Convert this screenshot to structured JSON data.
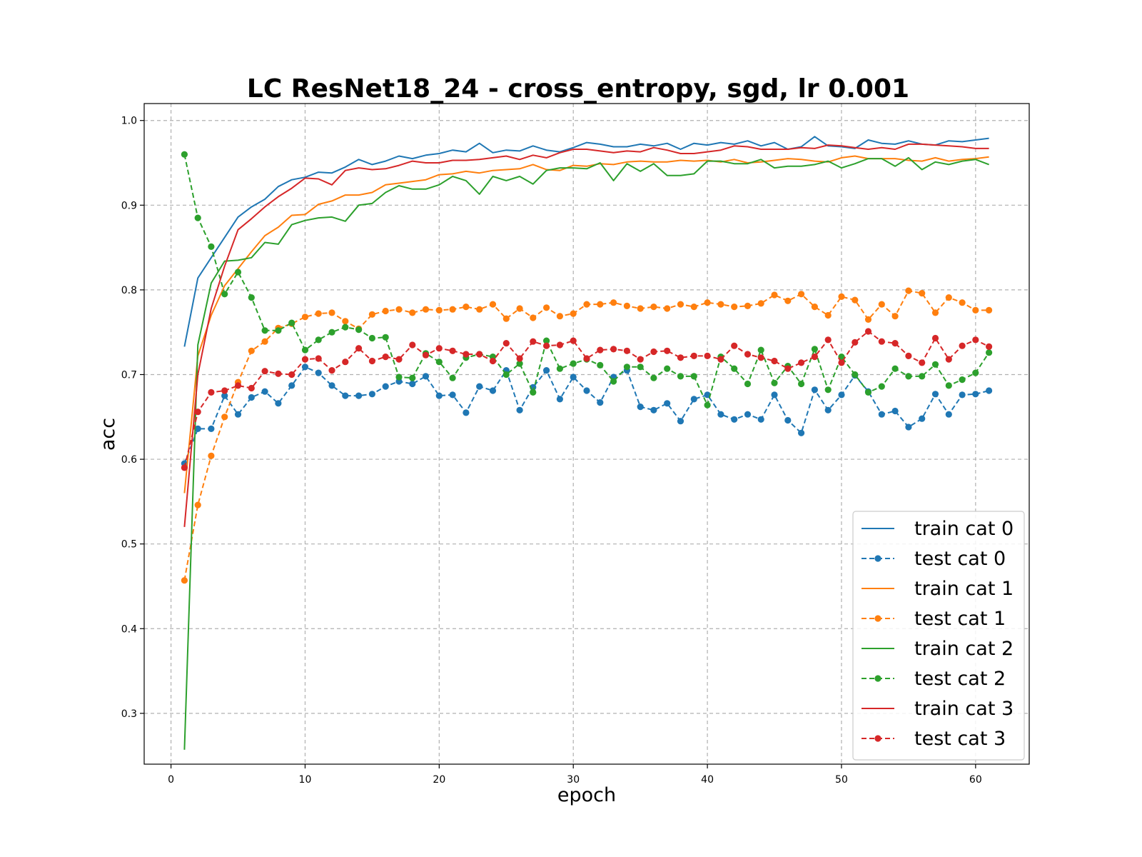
{
  "chart_data": {
    "type": "line",
    "title": "LC ResNet18_24 - cross_entropy, sgd, lr 0.001",
    "xlabel": "epoch",
    "ylabel": "acc",
    "xlim": [
      -2,
      64
    ],
    "ylim": [
      0.24,
      1.02
    ],
    "xticks": [
      0,
      10,
      20,
      30,
      40,
      50,
      60
    ],
    "yticks": [
      0.3,
      0.4,
      0.5,
      0.6,
      0.7,
      0.8,
      0.9,
      1.0
    ],
    "xtick_labels": [
      "0",
      "10",
      "20",
      "30",
      "40",
      "50",
      "60"
    ],
    "ytick_labels": [
      "0.3",
      "0.4",
      "0.5",
      "0.6",
      "0.7",
      "0.8",
      "0.9",
      "1.0"
    ],
    "grid": true,
    "legend_position": "lower-right",
    "x": [
      1,
      2,
      3,
      4,
      5,
      6,
      7,
      8,
      9,
      10,
      11,
      12,
      13,
      14,
      15,
      16,
      17,
      18,
      19,
      20,
      21,
      22,
      23,
      24,
      25,
      26,
      27,
      28,
      29,
      30,
      31,
      32,
      33,
      34,
      35,
      36,
      37,
      38,
      39,
      40,
      41,
      42,
      43,
      44,
      45,
      46,
      47,
      48,
      49,
      50,
      51,
      52,
      53,
      54,
      55,
      56,
      57,
      58,
      59,
      60,
      61
    ],
    "series": [
      {
        "name": "train cat 0",
        "color": "#1f77b4",
        "style": "solid",
        "markers": false,
        "values": [
          0.733,
          0.814,
          0.838,
          0.862,
          0.886,
          0.898,
          0.907,
          0.922,
          0.93,
          0.933,
          0.939,
          0.938,
          0.945,
          0.954,
          0.948,
          0.952,
          0.958,
          0.955,
          0.959,
          0.961,
          0.965,
          0.963,
          0.973,
          0.962,
          0.965,
          0.964,
          0.97,
          0.965,
          0.963,
          0.968,
          0.974,
          0.972,
          0.969,
          0.969,
          0.972,
          0.97,
          0.973,
          0.966,
          0.973,
          0.971,
          0.974,
          0.972,
          0.976,
          0.97,
          0.974,
          0.966,
          0.969,
          0.981,
          0.97,
          0.969,
          0.967,
          0.977,
          0.973,
          0.972,
          0.976,
          0.972,
          0.971,
          0.976,
          0.975,
          0.977,
          0.979
        ]
      },
      {
        "name": "test cat 0",
        "color": "#1f77b4",
        "style": "dashed",
        "markers": true,
        "values": [
          0.595,
          0.636,
          0.636,
          0.675,
          0.653,
          0.673,
          0.68,
          0.666,
          0.687,
          0.709,
          0.702,
          0.687,
          0.675,
          0.675,
          0.677,
          0.686,
          0.692,
          0.689,
          0.698,
          0.675,
          0.676,
          0.655,
          0.686,
          0.681,
          0.705,
          0.658,
          0.685,
          0.705,
          0.671,
          0.697,
          0.681,
          0.667,
          0.697,
          0.705,
          0.662,
          0.658,
          0.666,
          0.645,
          0.671,
          0.676,
          0.653,
          0.647,
          0.653,
          0.647,
          0.676,
          0.646,
          0.631,
          0.682,
          0.658,
          0.676,
          0.699,
          0.68,
          0.653,
          0.657,
          0.638,
          0.648,
          0.677,
          0.653,
          0.676,
          0.677,
          0.681
        ]
      },
      {
        "name": "train cat 1",
        "color": "#ff7f0e",
        "style": "solid",
        "markers": false,
        "values": [
          0.56,
          0.722,
          0.77,
          0.805,
          0.825,
          0.845,
          0.864,
          0.874,
          0.888,
          0.889,
          0.901,
          0.905,
          0.912,
          0.912,
          0.915,
          0.924,
          0.926,
          0.928,
          0.93,
          0.936,
          0.937,
          0.94,
          0.938,
          0.941,
          0.942,
          0.943,
          0.948,
          0.942,
          0.941,
          0.947,
          0.946,
          0.949,
          0.948,
          0.951,
          0.952,
          0.951,
          0.951,
          0.953,
          0.952,
          0.953,
          0.951,
          0.954,
          0.95,
          0.951,
          0.953,
          0.955,
          0.954,
          0.952,
          0.951,
          0.956,
          0.958,
          0.955,
          0.955,
          0.955,
          0.953,
          0.952,
          0.956,
          0.952,
          0.954,
          0.955,
          0.957
        ]
      },
      {
        "name": "test cat 1",
        "color": "#ff7f0e",
        "style": "dashed",
        "markers": true,
        "values": [
          0.457,
          0.546,
          0.604,
          0.65,
          0.691,
          0.728,
          0.739,
          0.755,
          0.76,
          0.768,
          0.772,
          0.773,
          0.763,
          0.754,
          0.771,
          0.775,
          0.777,
          0.773,
          0.777,
          0.776,
          0.777,
          0.78,
          0.777,
          0.783,
          0.766,
          0.778,
          0.767,
          0.779,
          0.769,
          0.772,
          0.783,
          0.783,
          0.785,
          0.781,
          0.778,
          0.78,
          0.778,
          0.783,
          0.78,
          0.785,
          0.783,
          0.78,
          0.781,
          0.784,
          0.794,
          0.787,
          0.795,
          0.78,
          0.77,
          0.792,
          0.788,
          0.765,
          0.783,
          0.769,
          0.799,
          0.796,
          0.773,
          0.791,
          0.785,
          0.776,
          0.776
        ]
      },
      {
        "name": "train cat 2",
        "color": "#2ca02c",
        "style": "solid",
        "markers": false,
        "values": [
          0.257,
          0.735,
          0.808,
          0.834,
          0.835,
          0.838,
          0.856,
          0.854,
          0.877,
          0.882,
          0.885,
          0.886,
          0.881,
          0.9,
          0.902,
          0.915,
          0.923,
          0.919,
          0.919,
          0.924,
          0.934,
          0.929,
          0.913,
          0.934,
          0.929,
          0.934,
          0.925,
          0.941,
          0.944,
          0.944,
          0.943,
          0.95,
          0.929,
          0.949,
          0.94,
          0.949,
          0.935,
          0.935,
          0.937,
          0.952,
          0.952,
          0.949,
          0.949,
          0.954,
          0.944,
          0.946,
          0.946,
          0.948,
          0.952,
          0.944,
          0.949,
          0.955,
          0.955,
          0.946,
          0.956,
          0.942,
          0.951,
          0.948,
          0.952,
          0.954,
          0.948
        ]
      },
      {
        "name": "test cat 2",
        "color": "#2ca02c",
        "style": "dashed",
        "markers": true,
        "values": [
          0.96,
          0.885,
          0.851,
          0.795,
          0.821,
          0.791,
          0.752,
          0.752,
          0.761,
          0.729,
          0.741,
          0.75,
          0.756,
          0.753,
          0.743,
          0.744,
          0.697,
          0.696,
          0.725,
          0.715,
          0.696,
          0.72,
          0.724,
          0.721,
          0.7,
          0.713,
          0.679,
          0.74,
          0.707,
          0.713,
          0.718,
          0.711,
          0.692,
          0.709,
          0.709,
          0.696,
          0.707,
          0.698,
          0.698,
          0.664,
          0.721,
          0.707,
          0.689,
          0.729,
          0.69,
          0.71,
          0.689,
          0.73,
          0.682,
          0.721,
          0.7,
          0.679,
          0.686,
          0.707,
          0.698,
          0.698,
          0.712,
          0.687,
          0.694,
          0.702,
          0.726
        ]
      },
      {
        "name": "train cat 3",
        "color": "#d62728",
        "style": "solid",
        "markers": false,
        "values": [
          0.52,
          0.7,
          0.778,
          0.828,
          0.871,
          0.884,
          0.898,
          0.91,
          0.92,
          0.932,
          0.931,
          0.924,
          0.941,
          0.944,
          0.942,
          0.943,
          0.947,
          0.952,
          0.95,
          0.95,
          0.953,
          0.953,
          0.954,
          0.956,
          0.958,
          0.954,
          0.959,
          0.956,
          0.962,
          0.966,
          0.966,
          0.964,
          0.962,
          0.964,
          0.963,
          0.968,
          0.965,
          0.961,
          0.961,
          0.963,
          0.965,
          0.97,
          0.969,
          0.966,
          0.966,
          0.966,
          0.968,
          0.967,
          0.971,
          0.97,
          0.968,
          0.966,
          0.968,
          0.966,
          0.972,
          0.972,
          0.971,
          0.97,
          0.969,
          0.967,
          0.967
        ]
      },
      {
        "name": "test cat 3",
        "color": "#d62728",
        "style": "dashed",
        "markers": true,
        "values": [
          0.59,
          0.656,
          0.679,
          0.681,
          0.687,
          0.684,
          0.704,
          0.701,
          0.7,
          0.718,
          0.719,
          0.705,
          0.715,
          0.731,
          0.716,
          0.721,
          0.718,
          0.735,
          0.723,
          0.731,
          0.728,
          0.724,
          0.724,
          0.716,
          0.737,
          0.719,
          0.739,
          0.734,
          0.735,
          0.74,
          0.719,
          0.729,
          0.73,
          0.728,
          0.718,
          0.727,
          0.728,
          0.72,
          0.722,
          0.722,
          0.718,
          0.734,
          0.724,
          0.72,
          0.716,
          0.707,
          0.714,
          0.721,
          0.741,
          0.714,
          0.738,
          0.751,
          0.739,
          0.737,
          0.722,
          0.714,
          0.743,
          0.718,
          0.734,
          0.741,
          0.733
        ]
      }
    ]
  }
}
